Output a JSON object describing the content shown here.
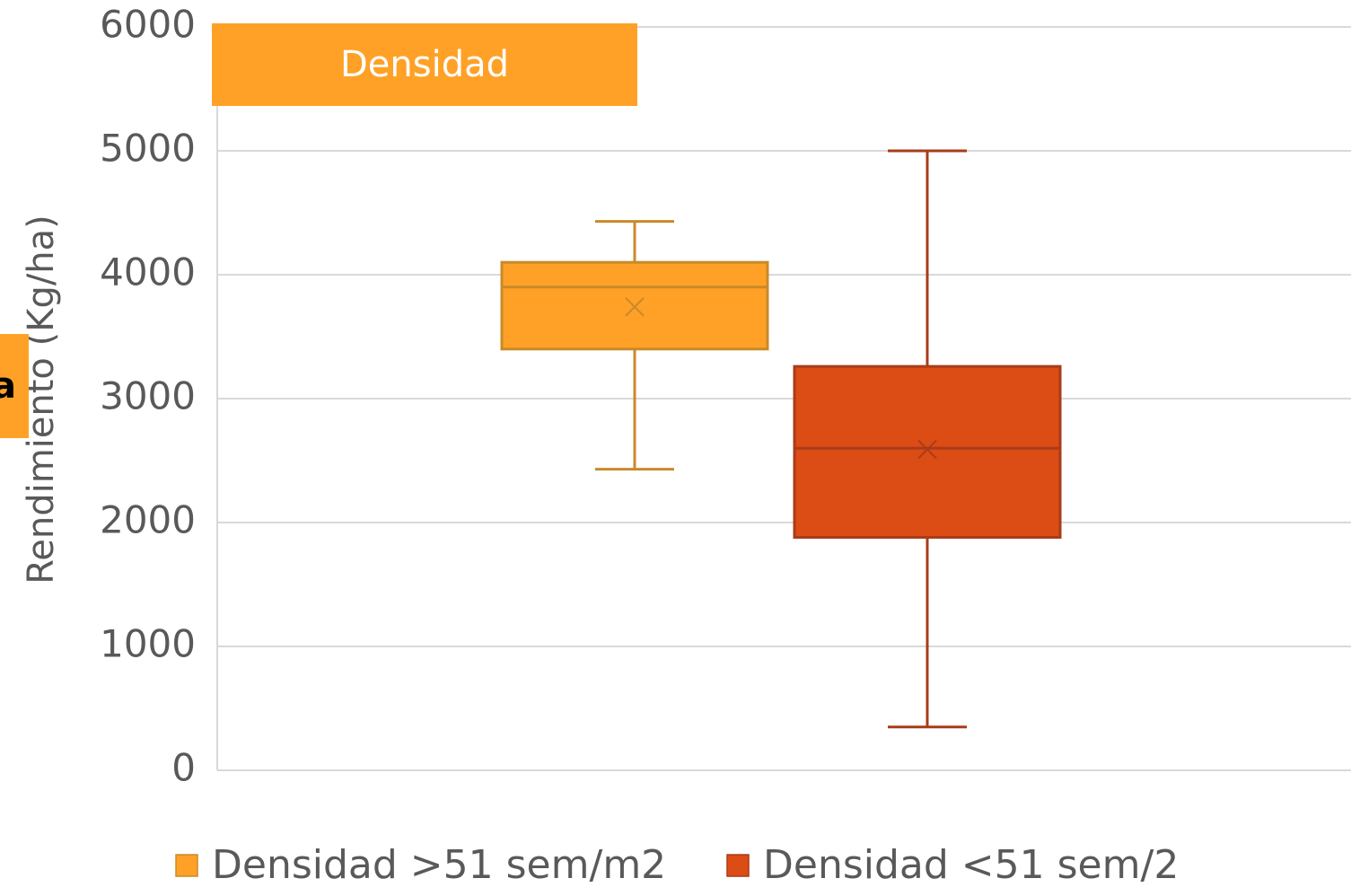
{
  "chart_data": {
    "type": "box",
    "title": "Densidad",
    "annotation": "a",
    "y_label": "Rendimiento (Kg/ha)",
    "ylim": [
      0,
      6000
    ],
    "yticks": [
      0,
      1000,
      2000,
      3000,
      4000,
      5000,
      6000
    ],
    "grid": true,
    "series": [
      {
        "name": "Densidad >51 sem/m2",
        "color": "#ffa126",
        "edge": "#c98a2a",
        "min": 2430,
        "q1": 3400,
        "median": 3900,
        "q3": 4100,
        "max": 4430,
        "mean": 3740
      },
      {
        "name": "Densidad <51 sem/2",
        "color": "#dc4c15",
        "edge": "#a83c1a",
        "min": 350,
        "q1": 1880,
        "median": 2600,
        "q3": 3260,
        "max": 5000,
        "mean": 2590
      }
    ]
  }
}
